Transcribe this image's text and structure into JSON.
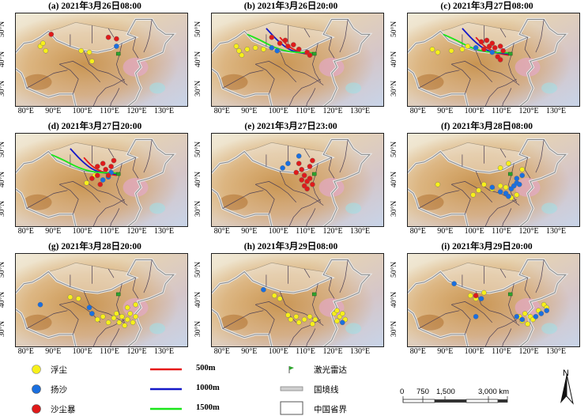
{
  "colors": {
    "float_dust": "#f7f01a",
    "blowing_sand": "#1a6fe0",
    "sandstorm": "#e01a1a",
    "line_500": "#e61919",
    "line_1000": "#1418c8",
    "line_1500": "#19e619",
    "lidar": "#2fa52f"
  },
  "panels": [
    {
      "title": "(a) 2021年3月26日08:00",
      "dust": [
        [
          85,
          44
        ],
        [
          86,
          45
        ],
        [
          87,
          42.5
        ],
        [
          103,
          42
        ],
        [
          104,
          39
        ],
        [
          100,
          42.5
        ]
      ],
      "sand": [
        [
          113,
          44
        ]
      ],
      "storm": [
        [
          89,
          48
        ],
        [
          110,
          47
        ],
        [
          113,
          46.5
        ]
      ],
      "trajectories": []
    },
    {
      "title": "(b) 2021年3月26日20:00",
      "dust": [
        [
          85,
          44
        ],
        [
          86,
          42.5
        ],
        [
          87,
          41
        ],
        [
          89,
          43
        ],
        [
          92,
          43.5
        ],
        [
          95,
          43
        ]
      ],
      "sand": [
        [
          98,
          43.5
        ],
        [
          100,
          42.5
        ]
      ],
      "storm": [
        [
          98,
          47
        ],
        [
          101,
          45
        ],
        [
          103,
          46
        ],
        [
          104,
          44
        ],
        [
          106,
          44.5
        ],
        [
          108,
          43
        ],
        [
          111,
          42
        ],
        [
          112,
          41
        ]
      ],
      "trajectories": [
        "500",
        "1000",
        "1500"
      ]
    },
    {
      "title": "(c) 2021年3月27日08:00",
      "dust": [
        [
          85,
          43
        ],
        [
          87,
          42
        ],
        [
          92,
          42.5
        ],
        [
          96,
          43
        ],
        [
          98,
          44
        ]
      ],
      "sand": [
        [
          101,
          43.5
        ],
        [
          107,
          42
        ]
      ],
      "storm": [
        [
          103,
          45.5
        ],
        [
          104,
          43
        ],
        [
          105,
          46
        ],
        [
          106,
          44
        ],
        [
          107,
          45
        ],
        [
          108,
          43.5
        ],
        [
          110,
          44
        ],
        [
          111,
          42.5
        ],
        [
          109,
          40.5
        ],
        [
          110,
          39.5
        ]
      ],
      "trajectories": [
        "500",
        "1000",
        "1500"
      ]
    },
    {
      "title": "(d) 2021年3月27日20:00",
      "dust": [
        [
          102,
          38.5
        ],
        [
          105,
          41
        ]
      ],
      "sand": [
        [
          108,
          39.5
        ],
        [
          110,
          40.5
        ],
        [
          111,
          42
        ]
      ],
      "storm": [
        [
          106,
          44
        ],
        [
          108,
          45
        ],
        [
          109,
          43
        ],
        [
          110,
          41
        ],
        [
          111,
          44
        ],
        [
          112,
          46
        ],
        [
          106,
          41
        ],
        [
          107,
          38
        ],
        [
          104,
          40
        ]
      ],
      "trajectories": [
        "500",
        "1000",
        "1500"
      ]
    },
    {
      "title": "(e) 2021年3月27日23:00",
      "dust": [],
      "sand": [
        [
          102,
          43.5
        ],
        [
          104,
          45
        ],
        [
          108,
          47.5
        ]
      ],
      "storm": [
        [
          108,
          45
        ],
        [
          109,
          43
        ],
        [
          110,
          41
        ],
        [
          111,
          39
        ],
        [
          110,
          37.5
        ],
        [
          112,
          40
        ],
        [
          112,
          44
        ],
        [
          113,
          46
        ],
        [
          107,
          42
        ],
        [
          109,
          39.5
        ],
        [
          111,
          36.5
        ],
        [
          113,
          38
        ]
      ],
      "trajectories": []
    },
    {
      "title": "(f) 2021年3月28日08:00",
      "dust": [
        [
          87,
          38
        ],
        [
          100,
          34.5
        ],
        [
          102,
          36
        ],
        [
          104,
          38
        ],
        [
          107,
          36.5
        ],
        [
          110,
          37.5
        ],
        [
          112,
          37
        ],
        [
          110,
          43.5
        ],
        [
          113,
          45
        ],
        [
          114,
          33.5
        ],
        [
          116,
          34.5
        ],
        [
          118,
          43
        ]
      ],
      "sand": [
        [
          107,
          37
        ],
        [
          110,
          35.5
        ],
        [
          112,
          35
        ],
        [
          113,
          34
        ],
        [
          114,
          36.5
        ],
        [
          115,
          37.5
        ],
        [
          116,
          38.5
        ],
        [
          117,
          38
        ],
        [
          116,
          40
        ],
        [
          118,
          41
        ]
      ],
      "storm": [],
      "trajectories": []
    },
    {
      "title": "(g) 2021年3月28日20:00",
      "dust": [
        [
          96,
          40.5
        ],
        [
          99,
          40
        ],
        [
          104,
          35
        ],
        [
          106,
          33
        ],
        [
          108,
          34
        ],
        [
          110,
          32
        ],
        [
          112,
          33.5
        ],
        [
          113,
          35
        ],
        [
          114,
          32
        ],
        [
          115,
          34
        ],
        [
          116,
          31
        ],
        [
          117,
          33
        ],
        [
          118,
          35
        ],
        [
          119,
          32
        ],
        [
          120,
          34
        ],
        [
          117,
          37
        ],
        [
          120,
          38
        ]
      ],
      "sand": [
        [
          85,
          38
        ],
        [
          103,
          37
        ],
        [
          104,
          35
        ]
      ],
      "storm": [],
      "trajectories": []
    },
    {
      "title": "(h) 2021年3月29日08:00",
      "dust": [
        [
          99,
          41
        ],
        [
          101,
          40
        ],
        [
          104,
          34.5
        ],
        [
          105,
          33
        ],
        [
          107,
          34
        ],
        [
          108,
          32
        ],
        [
          110,
          33
        ],
        [
          112,
          34
        ],
        [
          114,
          33
        ],
        [
          113,
          31.5
        ],
        [
          121,
          35
        ],
        [
          122,
          32.5
        ],
        [
          123,
          34
        ],
        [
          124,
          35
        ],
        [
          125,
          33
        ],
        [
          122,
          36
        ]
      ],
      "sand": [
        [
          95,
          43
        ],
        [
          124,
          32
        ]
      ],
      "storm": [],
      "trajectories": []
    },
    {
      "title": "(i) 2021年3月29日20:00",
      "dust": [
        [
          99,
          41
        ],
        [
          101,
          40
        ],
        [
          104,
          42
        ],
        [
          117,
          34
        ],
        [
          118,
          32.5
        ],
        [
          119,
          35
        ],
        [
          121,
          34
        ],
        [
          120,
          31.5
        ],
        [
          122,
          33
        ],
        [
          124,
          36
        ],
        [
          126,
          38
        ],
        [
          127,
          37
        ]
      ],
      "sand": [
        [
          93,
          45
        ],
        [
          103,
          40
        ],
        [
          101,
          34
        ],
        [
          116,
          34
        ],
        [
          118,
          33
        ],
        [
          123,
          34
        ],
        [
          125,
          35
        ],
        [
          127,
          36
        ]
      ],
      "storm": [
        [
          101,
          41
        ]
      ],
      "trajectories": []
    }
  ],
  "axes": {
    "x_ticks": [
      "80°E",
      "90°E",
      "100°E",
      "110°E",
      "120°E",
      "130°E"
    ],
    "y_ticks": [
      "30°N",
      "40°N",
      "50°N"
    ]
  },
  "legend": {
    "float_dust": "浮尘",
    "blowing_sand": "扬沙",
    "sandstorm": "沙尘暴",
    "line_500": "500m",
    "line_1000": "1000m",
    "line_1500": "1500m",
    "lidar": "激光雷达",
    "border": "国境线",
    "province": "中国省界"
  },
  "scale": {
    "labels": [
      "0",
      "750",
      "1,500",
      "3,000 km"
    ]
  },
  "north": "N"
}
